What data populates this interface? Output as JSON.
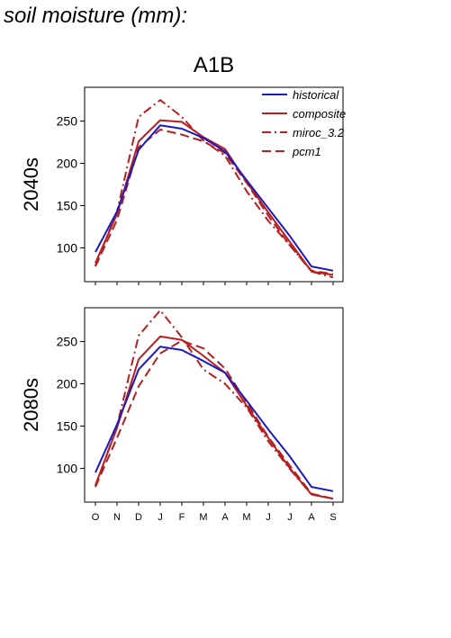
{
  "page_title": "soil moisture (mm):",
  "chart_data": {
    "type": "line",
    "title": "A1B",
    "months": [
      "O",
      "N",
      "D",
      "J",
      "F",
      "M",
      "A",
      "M",
      "J",
      "J",
      "A",
      "S"
    ],
    "yticks": [
      100,
      150,
      200,
      250
    ],
    "ylim": [
      60,
      290
    ],
    "legend_position": "top-right",
    "legend": [
      {
        "name": "historical",
        "color": "#1a1abf",
        "style": "solid"
      },
      {
        "name": "composite",
        "color": "#b51f1f",
        "style": "solid"
      },
      {
        "name": "miroc_3.2",
        "color": "#b51f1f",
        "style": "dashdot"
      },
      {
        "name": "pcm1",
        "color": "#b51f1f",
        "style": "dashed"
      }
    ],
    "panels": [
      {
        "label": "2040s",
        "series": [
          {
            "name": "historical",
            "values": [
              95,
              143,
              216,
              245,
              241,
              230,
              214,
              180,
              147,
              114,
              78,
              73
            ]
          },
          {
            "name": "composite",
            "values": [
              82,
              140,
              226,
              251,
              249,
              231,
              217,
              178,
              142,
              107,
              72,
              68
            ]
          },
          {
            "name": "miroc_3.2",
            "values": [
              79,
              143,
              255,
              275,
              255,
              227,
              209,
              167,
              132,
              103,
              72,
              65
            ]
          },
          {
            "name": "pcm1",
            "values": [
              78,
              133,
              219,
              240,
              234,
              226,
              212,
              177,
              138,
              103,
              73,
              69
            ]
          }
        ]
      },
      {
        "label": "2080s",
        "series": [
          {
            "name": "historical",
            "values": [
              95,
              152,
              217,
              244,
              240,
              227,
              213,
              180,
              146,
              114,
              78,
              73
            ]
          },
          {
            "name": "composite",
            "values": [
              80,
              148,
              229,
              256,
              252,
              233,
              213,
              174,
              136,
              100,
              69,
              64
            ]
          },
          {
            "name": "miroc_3.2",
            "values": [
              79,
              150,
              257,
              287,
              255,
              217,
              200,
              172,
              132,
              99,
              69,
              64
            ]
          },
          {
            "name": "pcm1",
            "values": [
              78,
              136,
              197,
              236,
              251,
              242,
              218,
              178,
              137,
              103,
              70,
              64
            ]
          }
        ]
      }
    ]
  }
}
